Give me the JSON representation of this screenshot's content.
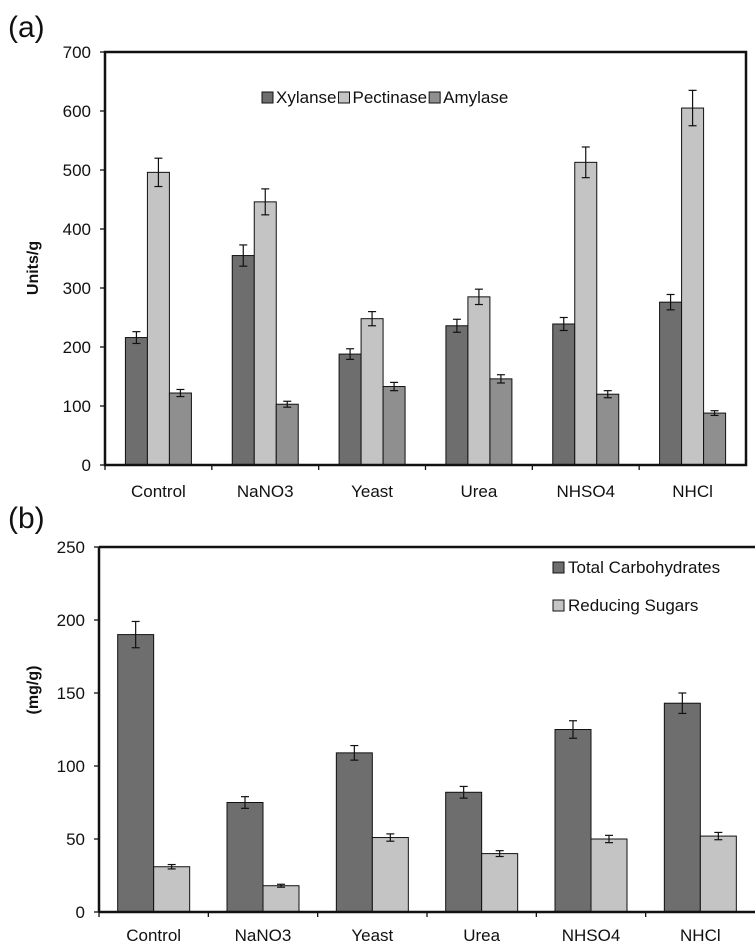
{
  "chart_data": [
    {
      "panel_label": "(a)",
      "type": "bar",
      "categories": [
        "Control",
        "NaNO3",
        "Yeast",
        "Urea",
        "NHSO4",
        "NHCl"
      ],
      "series": [
        {
          "name": "Xylanse",
          "color": "#6e6e6e",
          "values": [
            216,
            355,
            188,
            236,
            239,
            276
          ],
          "errors": [
            10,
            18,
            9,
            11,
            11,
            13
          ]
        },
        {
          "name": "Pectinase",
          "color": "#c4c4c4",
          "values": [
            496,
            446,
            248,
            285,
            513,
            605
          ],
          "errors": [
            24,
            22,
            12,
            13,
            26,
            30
          ]
        },
        {
          "name": "Amylase",
          "color": "#8f8f8f",
          "values": [
            122,
            103,
            133,
            146,
            120,
            88
          ],
          "errors": [
            6,
            5,
            7,
            7,
            6,
            4
          ]
        }
      ],
      "ylabel": "Units/g",
      "ylim": [
        0,
        700
      ],
      "yticks": [
        "0",
        "100",
        "200",
        "300",
        "400",
        "500",
        "600",
        "700"
      ],
      "legend": "top-center"
    },
    {
      "panel_label": "(b)",
      "type": "bar",
      "categories": [
        "Control",
        "NaNO3",
        "Yeast",
        "Urea",
        "NHSO4",
        "NHCl"
      ],
      "series": [
        {
          "name": "Total Carbohydrates",
          "color": "#6e6e6e",
          "values": [
            190,
            75,
            109,
            82,
            125,
            143
          ],
          "errors": [
            9,
            4,
            5,
            4,
            6,
            7
          ]
        },
        {
          "name": "Reducing Sugars",
          "color": "#c4c4c4",
          "values": [
            31,
            18,
            51,
            40,
            50,
            52
          ],
          "errors": [
            1.5,
            1,
            2.5,
            2,
            2.5,
            2.5
          ]
        }
      ],
      "ylabel": "(mg/g)",
      "ylim": [
        0,
        250
      ],
      "yticks": [
        "0",
        "50",
        "100",
        "150",
        "200",
        "250"
      ],
      "legend": "top-right"
    }
  ]
}
